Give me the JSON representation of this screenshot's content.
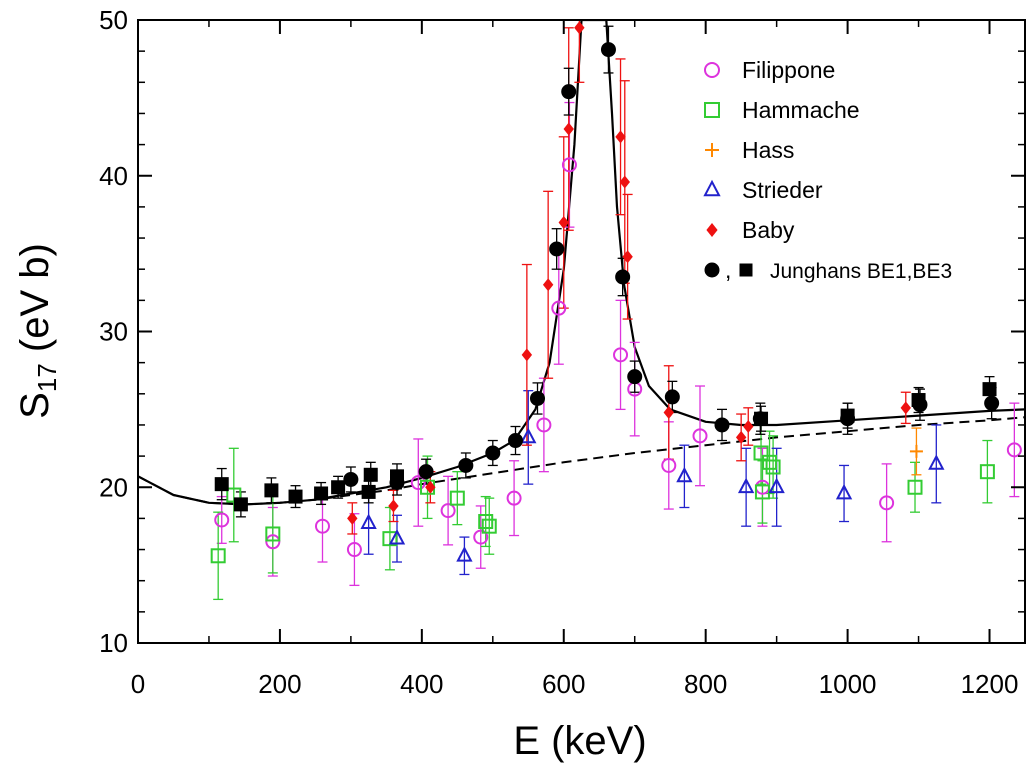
{
  "chart_data": {
    "type": "scatter",
    "xlabel": "E (keV)",
    "ylabel_main": "S",
    "ylabel_sub": "17",
    "ylabel_unit": " (eV b)",
    "xlim": [
      0,
      1250
    ],
    "ylim": [
      10,
      50
    ],
    "x_ticks": [
      0,
      200,
      400,
      600,
      800,
      1000,
      1200
    ],
    "y_ticks": [
      10,
      20,
      30,
      40,
      50
    ],
    "legend_position": "top-right",
    "series": [
      {
        "name": "Filippone",
        "marker": "circle-open",
        "color": "#dd33dd",
        "points": [
          [
            118,
            17.9,
            1.5
          ],
          [
            190,
            16.5,
            2.2
          ],
          [
            260,
            17.5,
            2.3
          ],
          [
            305,
            16.0,
            2.3
          ],
          [
            395,
            20.3,
            2.8
          ],
          [
            437,
            18.5,
            2.2
          ],
          [
            483,
            16.8,
            2.0
          ],
          [
            530,
            19.3,
            2.4
          ],
          [
            572,
            24.0,
            3.0
          ],
          [
            593,
            31.5,
            3.6
          ],
          [
            608,
            40.7,
            4.0
          ],
          [
            680,
            28.5,
            3.5
          ],
          [
            700,
            26.3,
            3.0
          ],
          [
            748,
            21.4,
            2.8
          ],
          [
            792,
            23.3,
            3.2
          ],
          [
            880,
            20.0,
            2.5
          ],
          [
            1055,
            19.0,
            2.5
          ],
          [
            1235,
            22.4,
            3.0
          ]
        ]
      },
      {
        "name": "Hammache",
        "marker": "square-open",
        "color": "#33cc33",
        "points": [
          [
            113,
            15.6,
            2.8
          ],
          [
            135,
            19.5,
            3.0
          ],
          [
            190,
            17.0,
            2.5
          ],
          [
            355,
            16.7,
            2.0
          ],
          [
            408,
            20.0,
            2.0
          ],
          [
            450,
            19.3,
            1.7
          ],
          [
            490,
            17.8,
            1.6
          ],
          [
            495,
            17.5,
            1.8
          ],
          [
            878,
            22.2,
            2.0
          ],
          [
            880,
            19.7,
            2.0
          ],
          [
            890,
            21.6,
            2.0
          ],
          [
            895,
            21.3,
            2.0
          ],
          [
            1095,
            20.0,
            1.6
          ],
          [
            1197,
            21.0,
            2.0
          ]
        ]
      },
      {
        "name": "Hass",
        "marker": "plus",
        "color": "#ff8800",
        "points": [
          [
            1097,
            22.3,
            1.5
          ]
        ]
      },
      {
        "name": "Strieder",
        "marker": "triangle-open",
        "color": "#2222cc",
        "points": [
          [
            325,
            17.7,
            2.0
          ],
          [
            365,
            16.7,
            1.5
          ],
          [
            460,
            15.6,
            1.2
          ],
          [
            550,
            23.2,
            3.0
          ],
          [
            770,
            20.7,
            2.0
          ],
          [
            857,
            20.0,
            2.5
          ],
          [
            900,
            20.0,
            2.5
          ],
          [
            995,
            19.6,
            1.8
          ],
          [
            1125,
            21.5,
            2.5
          ]
        ]
      },
      {
        "name": "Baby",
        "marker": "diamond-filled",
        "color": "#ee1111",
        "points": [
          [
            302,
            18.0,
            1.0
          ],
          [
            360,
            18.8,
            1.0
          ],
          [
            412,
            20.0,
            1.0
          ],
          [
            548,
            28.5,
            5.8
          ],
          [
            578,
            33.0,
            6.0
          ],
          [
            600,
            37.0,
            5.5
          ],
          [
            607,
            43.0,
            6.5
          ],
          [
            622,
            49.5,
            3.5
          ],
          [
            680,
            42.5,
            5.0
          ],
          [
            686,
            39.6,
            6.5
          ],
          [
            690,
            34.8,
            4.0
          ],
          [
            748,
            24.8,
            3.0
          ],
          [
            850,
            23.2,
            1.5
          ],
          [
            860,
            23.9,
            1.2
          ],
          [
            1082,
            25.1,
            1.0
          ]
        ]
      },
      {
        "name": "Junghans BE1",
        "marker": "circle-filled",
        "color": "#000000",
        "points": [
          [
            300,
            20.5,
            0.8
          ],
          [
            365,
            20.3,
            0.8
          ],
          [
            406,
            21.0,
            0.8
          ],
          [
            462,
            21.4,
            0.8
          ],
          [
            500,
            22.2,
            0.8
          ],
          [
            532,
            23.0,
            0.9
          ],
          [
            563,
            25.7,
            1.0
          ],
          [
            590,
            35.3,
            1.3
          ],
          [
            607,
            45.4,
            1.5
          ],
          [
            663,
            48.1,
            1.5
          ],
          [
            683,
            33.5,
            1.2
          ],
          [
            700,
            27.1,
            1.0
          ],
          [
            753,
            25.8,
            1.0
          ],
          [
            823,
            24.0,
            1.0
          ],
          [
            877,
            24.4,
            1.0
          ],
          [
            1000,
            24.4,
            1.0
          ],
          [
            1102,
            25.3,
            1.0
          ],
          [
            1203,
            25.4,
            1.0
          ]
        ]
      },
      {
        "name": "Junghans BE3",
        "marker": "square-filled",
        "color": "#000000",
        "points": [
          [
            118,
            20.2,
            1.0
          ],
          [
            145,
            18.9,
            0.8
          ],
          [
            188,
            19.8,
            0.8
          ],
          [
            222,
            19.4,
            0.7
          ],
          [
            258,
            19.6,
            0.7
          ],
          [
            282,
            20.0,
            0.7
          ],
          [
            325,
            19.7,
            0.7
          ],
          [
            328,
            20.8,
            0.8
          ],
          [
            365,
            20.7,
            0.8
          ],
          [
            878,
            24.4,
            0.8
          ],
          [
            1000,
            24.6,
            0.8
          ],
          [
            1100,
            25.6,
            0.8
          ],
          [
            1200,
            26.3,
            0.8
          ]
        ]
      }
    ],
    "legend": [
      {
        "label": "Filippone",
        "marker": "circle-open",
        "color": "#dd33dd"
      },
      {
        "label": "Hammache",
        "marker": "square-open",
        "color": "#33cc33"
      },
      {
        "label": "Hass",
        "marker": "plus",
        "color": "#ff8800"
      },
      {
        "label": "Strieder",
        "marker": "triangle-open",
        "color": "#2222cc"
      },
      {
        "label": "Baby",
        "marker": "diamond-filled",
        "color": "#ee1111"
      },
      {
        "label": "Junghans BE1,BE3",
        "marker": "circle-filled+square-filled",
        "color": "#000000",
        "separator": ","
      }
    ],
    "curves": {
      "resonant_fit": {
        "style": "solid",
        "points": [
          [
            0,
            20.7
          ],
          [
            50,
            19.5
          ],
          [
            100,
            19.0
          ],
          [
            150,
            18.9
          ],
          [
            200,
            19.0
          ],
          [
            250,
            19.2
          ],
          [
            300,
            19.6
          ],
          [
            350,
            20.0
          ],
          [
            400,
            20.6
          ],
          [
            450,
            21.3
          ],
          [
            500,
            22.2
          ],
          [
            530,
            23.0
          ],
          [
            560,
            25.0
          ],
          [
            580,
            28.0
          ],
          [
            600,
            34.0
          ],
          [
            615,
            42.0
          ],
          [
            625,
            50.0
          ],
          [
            660,
            50.0
          ],
          [
            668,
            44.0
          ],
          [
            675,
            38.0
          ],
          [
            685,
            33.0
          ],
          [
            700,
            29.0
          ],
          [
            720,
            26.5
          ],
          [
            750,
            25.0
          ],
          [
            800,
            24.2
          ],
          [
            850,
            24.0
          ],
          [
            900,
            24.0
          ],
          [
            1000,
            24.3
          ],
          [
            1100,
            24.6
          ],
          [
            1200,
            24.9
          ],
          [
            1250,
            25.0
          ]
        ]
      },
      "nonresonant_fit": {
        "style": "dashed",
        "points": [
          [
            0,
            20.7
          ],
          [
            50,
            19.5
          ],
          [
            100,
            19.0
          ],
          [
            150,
            18.9
          ],
          [
            200,
            19.0
          ],
          [
            250,
            19.2
          ],
          [
            300,
            19.5
          ],
          [
            350,
            19.8
          ],
          [
            400,
            20.2
          ],
          [
            500,
            20.9
          ],
          [
            600,
            21.6
          ],
          [
            700,
            22.2
          ],
          [
            800,
            22.7
          ],
          [
            900,
            23.2
          ],
          [
            1000,
            23.6
          ],
          [
            1100,
            24.0
          ],
          [
            1200,
            24.3
          ],
          [
            1250,
            24.5
          ]
        ]
      }
    }
  }
}
